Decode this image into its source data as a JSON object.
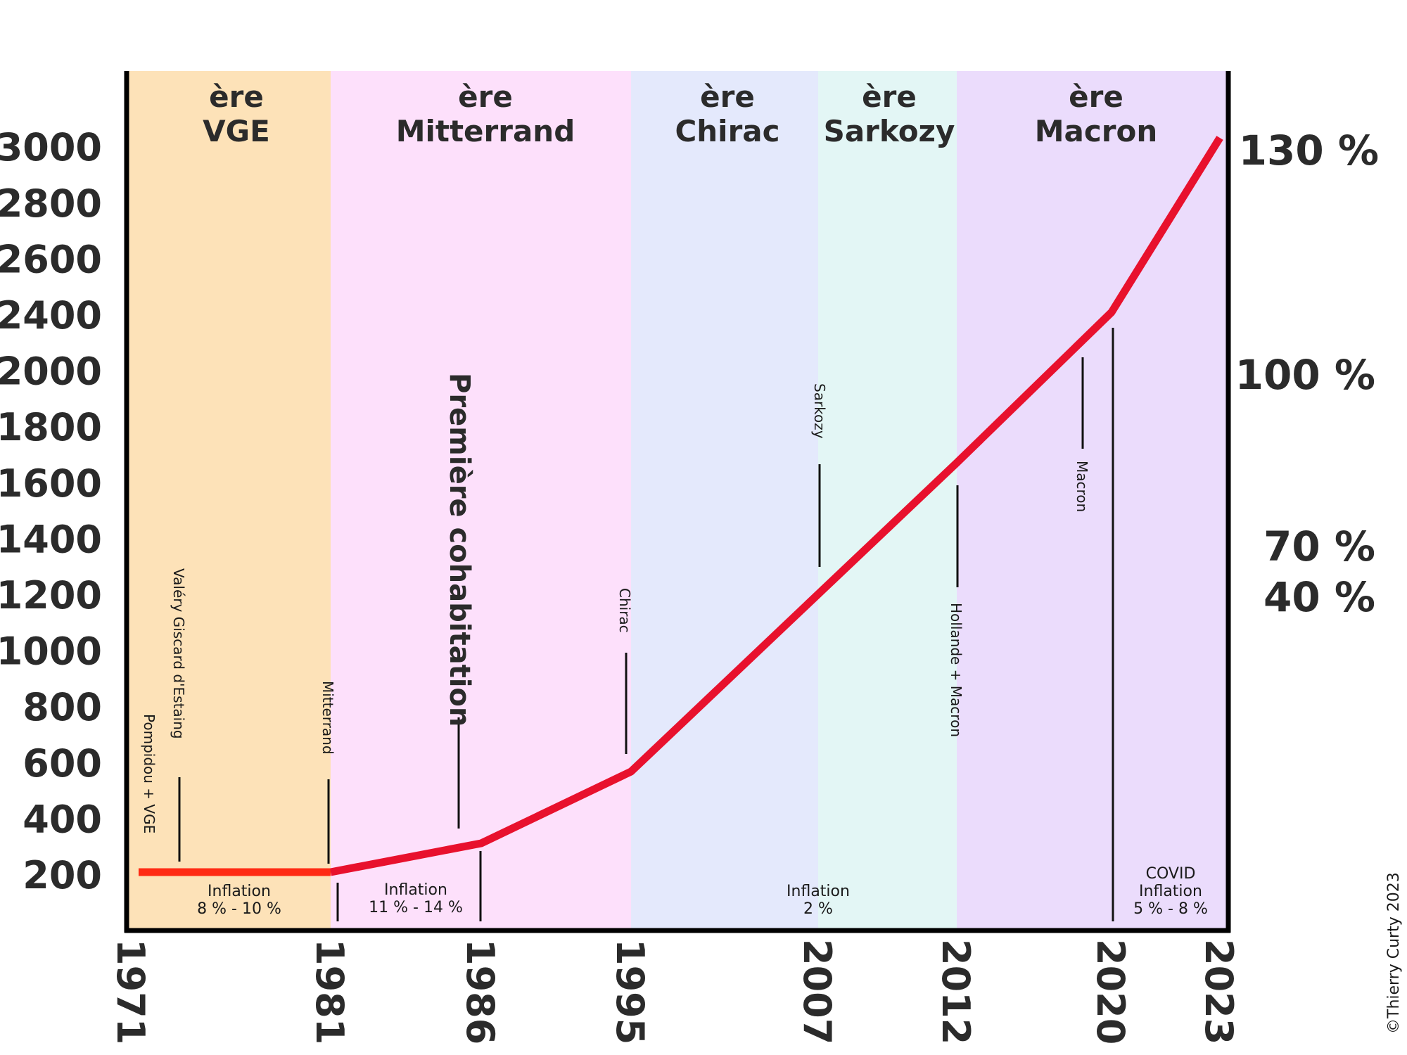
{
  "chart_data": {
    "type": "line",
    "x": [
      1971,
      1981,
      1986,
      1995,
      2012,
      2020,
      2023
    ],
    "series": [
      {
        "values": [
          242,
          242,
          342,
          592,
          1700,
          2430,
          3060
        ],
        "color": "#e8112d"
      }
    ],
    "x_ticks": [
      "1971",
      "1981",
      "1986",
      "1995",
      "2007",
      "2012",
      "2020",
      "2023"
    ],
    "y_ticks": [
      "200",
      "400",
      "600",
      "800",
      "1000",
      "1200",
      "1400",
      "1600",
      "1800",
      "2000",
      "2400",
      "2600",
      "2800",
      "3000"
    ],
    "right_labels": [
      "130 %",
      "100 %",
      "70 %",
      "40 %"
    ],
    "line_color": "#e8112d",
    "first_segment_color": "#ff2a14",
    "eras": [
      {
        "label_top": "ère",
        "label_bottom": "VGE",
        "start": 1971,
        "end": 1981,
        "color": "#fde2b8"
      },
      {
        "label_top": "ère",
        "label_bottom": "Mitterrand",
        "start": 1981,
        "end": 1995,
        "color": "#fde0fb"
      },
      {
        "label_top": "ère",
        "label_bottom": "Chirac",
        "start": 1995,
        "end": 2007,
        "color": "#e4e9fc"
      },
      {
        "label_top": "ère",
        "label_bottom": "Sarkozy",
        "start": 2007,
        "end": 2012,
        "color": "#e3f6f5"
      },
      {
        "label_top": "ère",
        "label_bottom": "Macron",
        "start": 2012,
        "end": 2023,
        "color": "#ebdcfc"
      }
    ],
    "annotations": {
      "pompidou": "Pompidou + VGE",
      "valery": "Valéry Giscard d'Estaing",
      "mitterrand": "Mitterrand",
      "cohabitation": "Première cohabitation",
      "chirac": "Chirac",
      "sarkozy": "Sarkozy",
      "hollande": "Hollande + Macron",
      "macron": "Macron"
    },
    "inflation": {
      "vge": {
        "title": "Inflation",
        "value": "8 % - 10 %"
      },
      "mitterrand": {
        "title": "Inflation",
        "value": "11 % - 14 %"
      },
      "chirac": {
        "title": "Inflation",
        "value": "2 %"
      },
      "covid": {
        "line1": "COVID",
        "title": "Inflation",
        "value": "5 % - 8 %"
      }
    },
    "copyright": "©Thierry Curty 2023"
  }
}
